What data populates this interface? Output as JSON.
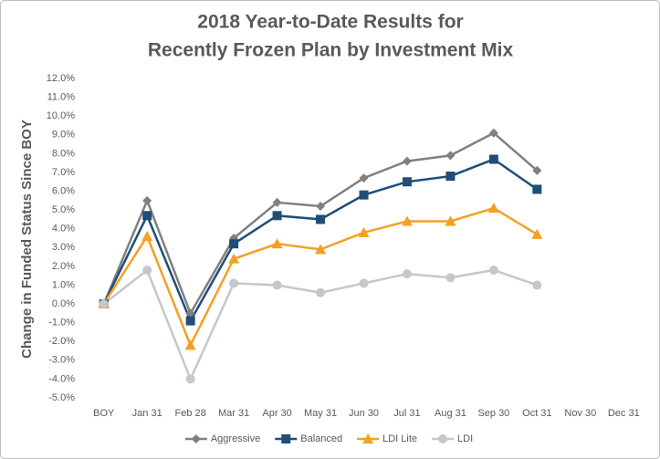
{
  "chart_data": {
    "type": "line",
    "title": [
      "2018 Year-to-Date Results for",
      "Recently Frozen Plan by Investment Mix"
    ],
    "y_label": "Change in Funded Status Since BOY",
    "categories": [
      "BOY",
      "Jan 31",
      "Feb 28",
      "Mar 31",
      "Apr 30",
      "May 31",
      "Jun 30",
      "Jul 31",
      "Aug 31",
      "Sep 30",
      "Oct 31",
      "Nov 30",
      "Dec 31"
    ],
    "series": [
      {
        "name": "Aggressive",
        "color": "#808080",
        "marker": "diamond",
        "values": [
          0,
          5.5,
          -0.5,
          3.5,
          5.4,
          5.2,
          6.7,
          7.6,
          7.9,
          9.1,
          7.1,
          null,
          null
        ]
      },
      {
        "name": "Balanced",
        "color": "#1f4e79",
        "marker": "square",
        "values": [
          0,
          4.7,
          -0.9,
          3.2,
          4.7,
          4.5,
          5.8,
          6.5,
          6.8,
          7.7,
          6.1,
          null,
          null
        ]
      },
      {
        "name": "LDI Lite",
        "color": "#f4a024",
        "marker": "triangle",
        "values": [
          0,
          3.6,
          -2.2,
          2.4,
          3.2,
          2.9,
          3.8,
          4.4,
          4.4,
          5.1,
          3.7,
          null,
          null
        ]
      },
      {
        "name": "LDI",
        "color": "#c3c7ce",
        "marker": "circle",
        "values": [
          0,
          1.8,
          -4.0,
          1.1,
          1.0,
          0.6,
          1.1,
          1.6,
          1.4,
          1.8,
          1.0,
          null,
          null
        ]
      }
    ],
    "ylim": [
      -5,
      12
    ],
    "yticks": [
      {
        "value": -5,
        "label": "-5.0%"
      },
      {
        "value": -4,
        "label": "-4.0%"
      },
      {
        "value": -3,
        "label": "-3.0%"
      },
      {
        "value": -2,
        "label": "-2.0%"
      },
      {
        "value": -1,
        "label": "-1.0%"
      },
      {
        "value": 0,
        "label": "0.0%"
      },
      {
        "value": 1,
        "label": "1.0%"
      },
      {
        "value": 2,
        "label": "2.0%"
      },
      {
        "value": 3,
        "label": "3.0%"
      },
      {
        "value": 4,
        "label": "4.0%"
      },
      {
        "value": 5,
        "label": "5.0%"
      },
      {
        "value": 6,
        "label": "6.0%"
      },
      {
        "value": 7,
        "label": "7.0%"
      },
      {
        "value": 8,
        "label": "8.0%"
      },
      {
        "value": 9,
        "label": "9.0%"
      },
      {
        "value": 10,
        "label": "10.0%"
      },
      {
        "value": 11,
        "label": "11.0%"
      },
      {
        "value": 12,
        "label": "12.0%"
      }
    ],
    "grid": false,
    "legend": "bottom"
  }
}
